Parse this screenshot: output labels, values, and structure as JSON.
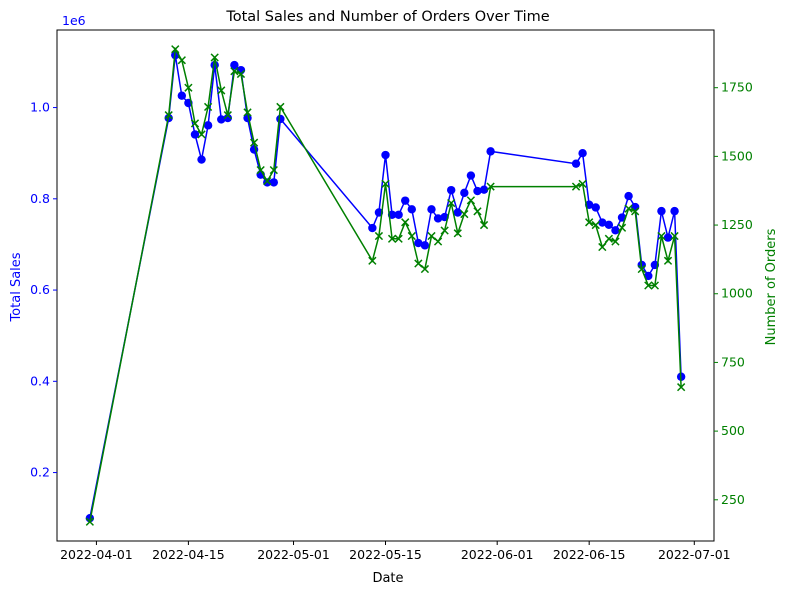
{
  "chart_data": {
    "type": "line",
    "title": "Total Sales and Number of Orders Over Time",
    "xlabel": "Date",
    "ylabel_left": "Total Sales",
    "ylabel_right": "Number of Orders",
    "left_axis_offset_label": "1e6",
    "left_scale": 1000000,
    "colors": {
      "left": "#0000ff",
      "right": "#008000",
      "axis": "#000000"
    },
    "xlim": [
      "2022-03-26",
      "2022-07-04"
    ],
    "ylim_left": [
      0.05,
      1.17
    ],
    "ylim_right": [
      100,
      1960
    ],
    "x_ticks": [
      {
        "value": "2022-04-01",
        "label": "2022-04-01"
      },
      {
        "value": "2022-04-15",
        "label": "2022-04-15"
      },
      {
        "value": "2022-05-01",
        "label": "2022-05-01"
      },
      {
        "value": "2022-05-15",
        "label": "2022-05-15"
      },
      {
        "value": "2022-06-01",
        "label": "2022-06-01"
      },
      {
        "value": "2022-06-15",
        "label": "2022-06-15"
      },
      {
        "value": "2022-07-01",
        "label": "2022-07-01"
      }
    ],
    "y_ticks_left": [
      {
        "value": 0.2,
        "label": "0.2"
      },
      {
        "value": 0.4,
        "label": "0.4"
      },
      {
        "value": 0.6,
        "label": "0.6"
      },
      {
        "value": 0.8,
        "label": "0.8"
      },
      {
        "value": 1.0,
        "label": "1.0"
      }
    ],
    "y_ticks_right": [
      {
        "value": 250,
        "label": "250"
      },
      {
        "value": 500,
        "label": "500"
      },
      {
        "value": 750,
        "label": "750"
      },
      {
        "value": 1000,
        "label": "1000"
      },
      {
        "value": 1250,
        "label": "1250"
      },
      {
        "value": 1500,
        "label": "1500"
      },
      {
        "value": 1750,
        "label": "1750"
      }
    ],
    "series": [
      {
        "axis": "left",
        "marker": "circle",
        "color": "#0000ff",
        "x": [
          "2022-03-31",
          "2022-04-12",
          "2022-04-13",
          "2022-04-14",
          "2022-04-15",
          "2022-04-16",
          "2022-04-17",
          "2022-04-18",
          "2022-04-19",
          "2022-04-20",
          "2022-04-21",
          "2022-04-22",
          "2022-04-23",
          "2022-04-24",
          "2022-04-25",
          "2022-04-26",
          "2022-04-27",
          "2022-04-28",
          "2022-04-29",
          "2022-05-13",
          "2022-05-14",
          "2022-05-15",
          "2022-05-16",
          "2022-05-17",
          "2022-05-18",
          "2022-05-19",
          "2022-05-20",
          "2022-05-21",
          "2022-05-22",
          "2022-05-23",
          "2022-05-24",
          "2022-05-25",
          "2022-05-26",
          "2022-05-27",
          "2022-05-28",
          "2022-05-29",
          "2022-05-30",
          "2022-05-31",
          "2022-06-13",
          "2022-06-14",
          "2022-06-15",
          "2022-06-16",
          "2022-06-17",
          "2022-06-18",
          "2022-06-19",
          "2022-06-20",
          "2022-06-21",
          "2022-06-22",
          "2022-06-23",
          "2022-06-24",
          "2022-06-25",
          "2022-06-26",
          "2022-06-27",
          "2022-06-28",
          "2022-06-29"
        ],
        "values": [
          0.1,
          0.977,
          1.115,
          1.026,
          1.01,
          0.941,
          0.886,
          0.961,
          1.093,
          0.974,
          0.977,
          1.093,
          1.082,
          0.977,
          0.908,
          0.853,
          0.836,
          0.836,
          0.975,
          0.736,
          0.77,
          0.896,
          0.765,
          0.765,
          0.796,
          0.777,
          0.703,
          0.698,
          0.777,
          0.757,
          0.76,
          0.819,
          0.77,
          0.813,
          0.851,
          0.817,
          0.82,
          0.904,
          0.877,
          0.9,
          0.787,
          0.781,
          0.748,
          0.743,
          0.731,
          0.759,
          0.806,
          0.782,
          0.655,
          0.631,
          0.655,
          0.773,
          0.715,
          0.773,
          0.41
        ]
      },
      {
        "axis": "right",
        "marker": "x",
        "color": "#008000",
        "x": [
          "2022-03-31",
          "2022-04-12",
          "2022-04-13",
          "2022-04-14",
          "2022-04-15",
          "2022-04-16",
          "2022-04-17",
          "2022-04-18",
          "2022-04-19",
          "2022-04-20",
          "2022-04-21",
          "2022-04-22",
          "2022-04-23",
          "2022-04-24",
          "2022-04-25",
          "2022-04-26",
          "2022-04-27",
          "2022-04-28",
          "2022-04-29",
          "2022-05-13",
          "2022-05-14",
          "2022-05-15",
          "2022-05-16",
          "2022-05-17",
          "2022-05-18",
          "2022-05-19",
          "2022-05-20",
          "2022-05-21",
          "2022-05-22",
          "2022-05-23",
          "2022-05-24",
          "2022-05-25",
          "2022-05-26",
          "2022-05-27",
          "2022-05-28",
          "2022-05-29",
          "2022-05-30",
          "2022-05-31",
          "2022-06-13",
          "2022-06-14",
          "2022-06-15",
          "2022-06-16",
          "2022-06-17",
          "2022-06-18",
          "2022-06-19",
          "2022-06-20",
          "2022-06-21",
          "2022-06-22",
          "2022-06-23",
          "2022-06-24",
          "2022-06-25",
          "2022-06-26",
          "2022-06-27",
          "2022-06-28",
          "2022-06-29"
        ],
        "values": [
          170,
          1650,
          1890,
          1850,
          1750,
          1620,
          1580,
          1680,
          1860,
          1740,
          1650,
          1810,
          1800,
          1660,
          1550,
          1450,
          1410,
          1450,
          1680,
          1120,
          1210,
          1400,
          1200,
          1200,
          1260,
          1210,
          1110,
          1090,
          1210,
          1190,
          1230,
          1330,
          1220,
          1290,
          1340,
          1300,
          1250,
          1390,
          1390,
          1400,
          1260,
          1250,
          1170,
          1200,
          1190,
          1240,
          1310,
          1300,
          1090,
          1030,
          1030,
          1210,
          1120,
          1210,
          660
        ]
      }
    ]
  }
}
